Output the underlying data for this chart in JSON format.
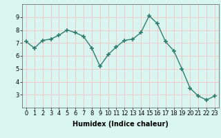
{
  "x": [
    0,
    1,
    2,
    3,
    4,
    5,
    6,
    7,
    8,
    9,
    10,
    11,
    12,
    13,
    14,
    15,
    16,
    17,
    18,
    19,
    20,
    21,
    22,
    23
  ],
  "y": [
    7.1,
    6.6,
    7.2,
    7.3,
    7.6,
    8.0,
    7.8,
    7.5,
    6.6,
    5.2,
    6.1,
    6.7,
    7.2,
    7.3,
    7.8,
    9.1,
    8.5,
    7.1,
    6.4,
    5.0,
    3.5,
    2.9,
    2.6,
    2.9
  ],
  "xlabel": "Humidex (Indice chaleur)",
  "ylim": [
    2,
    10
  ],
  "xlim": [
    -0.5,
    23.5
  ],
  "yticks": [
    3,
    4,
    5,
    6,
    7,
    8,
    9
  ],
  "xticks": [
    0,
    1,
    2,
    3,
    4,
    5,
    6,
    7,
    8,
    9,
    10,
    11,
    12,
    13,
    14,
    15,
    16,
    17,
    18,
    19,
    20,
    21,
    22,
    23
  ],
  "line_color": "#2e7d6e",
  "marker": "+",
  "marker_size": 4,
  "marker_lw": 1.2,
  "line_width": 1.0,
  "bg_color": "#d8f5f0",
  "grid_color": "#f0c8c8",
  "xlabel_fontsize": 7,
  "tick_fontsize": 6,
  "xlabel_fontweight": "bold"
}
